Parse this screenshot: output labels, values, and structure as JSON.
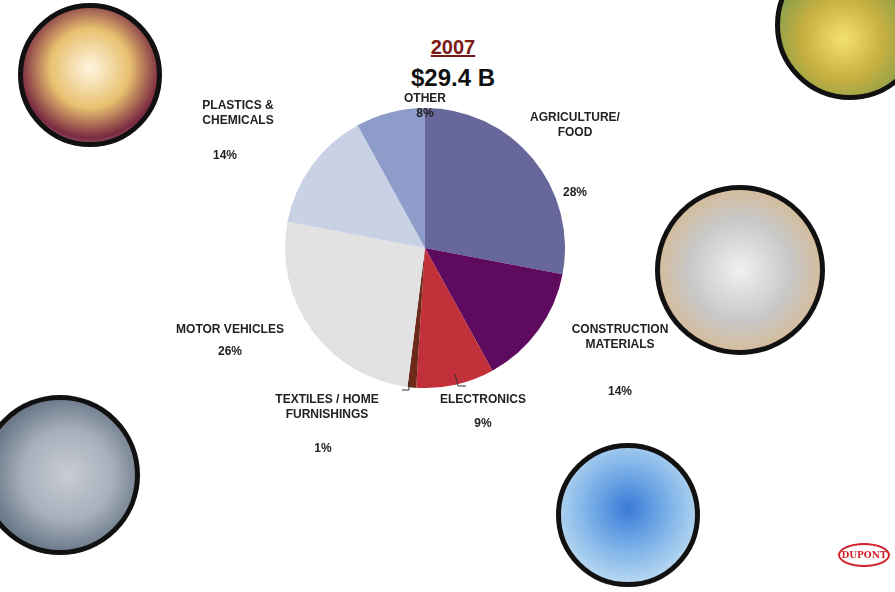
{
  "chart_data": {
    "type": "pie",
    "title": "2007",
    "subtitle": "$29.4 B",
    "categories": [
      "AGRICULTURE/ FOOD",
      "CONSTRUCTION MATERIALS",
      "ELECTRONICS",
      "TEXTILES / HOME FURNISHINGS",
      "MOTOR VEHICLES",
      "PLASTICS & CHEMICALS",
      "OTHER"
    ],
    "values": [
      28,
      14,
      9,
      1,
      26,
      14,
      8
    ],
    "value_labels": [
      "28%",
      "14%",
      "9%",
      "1%",
      "26%",
      "14%",
      "8%"
    ],
    "colors": [
      "#67679b",
      "#5e0a5e",
      "#c2303a",
      "#6e2a18",
      "#e2e2e2",
      "#c9d1e5",
      "#8d9cc9"
    ],
    "data_labels": true,
    "logo": "DUPONT"
  }
}
